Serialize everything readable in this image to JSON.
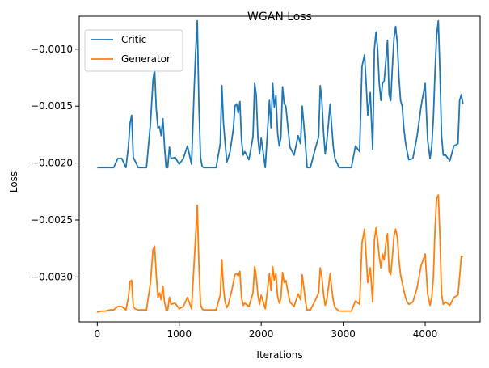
{
  "chart_data": {
    "type": "line",
    "title": "WGAN Loss",
    "xlabel": "Iterations",
    "ylabel": "Loss",
    "xlim": [
      -220,
      4670
    ],
    "ylim": [
      -0.003395,
      -0.00071
    ],
    "xticks": [
      0,
      1000,
      2000,
      3000,
      4000
    ],
    "xtick_labels": [
      "0",
      "1000",
      "2000",
      "3000",
      "4000"
    ],
    "yticks": [
      -0.001,
      -0.0015,
      -0.002,
      -0.0025,
      -0.003
    ],
    "ytick_labels": [
      "−0.0010",
      "−0.0015",
      "−0.0020",
      "−0.0025",
      "−0.0030"
    ],
    "grid": false,
    "legend_position": "upper-left",
    "series": [
      {
        "name": "Critic",
        "color": "#1f77b4",
        "x": [
          0,
          50,
          100,
          150,
          200,
          250,
          300,
          350,
          380,
          400,
          420,
          440,
          460,
          500,
          550,
          600,
          650,
          680,
          700,
          720,
          740,
          760,
          780,
          800,
          820,
          840,
          860,
          880,
          900,
          950,
          1000,
          1050,
          1100,
          1150,
          1180,
          1200,
          1220,
          1240,
          1260,
          1280,
          1300,
          1350,
          1400,
          1450,
          1500,
          1520,
          1540,
          1560,
          1580,
          1600,
          1620,
          1640,
          1660,
          1680,
          1700,
          1720,
          1740,
          1760,
          1780,
          1800,
          1850,
          1900,
          1920,
          1940,
          1960,
          1980,
          2000,
          2050,
          2100,
          2120,
          2140,
          2160,
          2180,
          2200,
          2220,
          2240,
          2260,
          2280,
          2300,
          2350,
          2400,
          2450,
          2480,
          2500,
          2520,
          2540,
          2560,
          2600,
          2650,
          2700,
          2720,
          2740,
          2760,
          2780,
          2800,
          2820,
          2840,
          2860,
          2880,
          2900,
          2950,
          3000,
          3050,
          3100,
          3150,
          3200,
          3230,
          3260,
          3280,
          3300,
          3330,
          3360,
          3380,
          3400,
          3420,
          3440,
          3460,
          3480,
          3500,
          3520,
          3540,
          3560,
          3580,
          3600,
          3620,
          3640,
          3660,
          3680,
          3700,
          3720,
          3740,
          3760,
          3780,
          3800,
          3850,
          3900,
          3950,
          4000,
          4030,
          4060,
          4080,
          4100,
          4120,
          4140,
          4160,
          4180,
          4200,
          4220,
          4250,
          4300,
          4350,
          4400,
          4420,
          4440,
          4460
        ],
        "y": [
          -0.00204,
          -0.00204,
          -0.00204,
          -0.00204,
          -0.00204,
          -0.00196,
          -0.00196,
          -0.00204,
          -0.00185,
          -0.00165,
          -0.00158,
          -0.00195,
          -0.00198,
          -0.00204,
          -0.00204,
          -0.00204,
          -0.00165,
          -0.00127,
          -0.00118,
          -0.00152,
          -0.00169,
          -0.00168,
          -0.00176,
          -0.00161,
          -0.00185,
          -0.00204,
          -0.00204,
          -0.00186,
          -0.00196,
          -0.00195,
          -0.00201,
          -0.00196,
          -0.00185,
          -0.00201,
          -0.0014,
          -0.00103,
          -0.00075,
          -0.0015,
          -0.00195,
          -0.00203,
          -0.00204,
          -0.00204,
          -0.00204,
          -0.00204,
          -0.00183,
          -0.00132,
          -0.00165,
          -0.00182,
          -0.00199,
          -0.00195,
          -0.0019,
          -0.0018,
          -0.0017,
          -0.0015,
          -0.00148,
          -0.00156,
          -0.00146,
          -0.0018,
          -0.00193,
          -0.0019,
          -0.00197,
          -0.00177,
          -0.0013,
          -0.00141,
          -0.00178,
          -0.00192,
          -0.00178,
          -0.00204,
          -0.00145,
          -0.00169,
          -0.0013,
          -0.00151,
          -0.00141,
          -0.00174,
          -0.00185,
          -0.00178,
          -0.00133,
          -0.00148,
          -0.0015,
          -0.00186,
          -0.00193,
          -0.00176,
          -0.00183,
          -0.0015,
          -0.00166,
          -0.00185,
          -0.00204,
          -0.00204,
          -0.0019,
          -0.00177,
          -0.00132,
          -0.00145,
          -0.00173,
          -0.00192,
          -0.00181,
          -0.00165,
          -0.00148,
          -0.00168,
          -0.00186,
          -0.00196,
          -0.00204,
          -0.00204,
          -0.00204,
          -0.00204,
          -0.00185,
          -0.0019,
          -0.00115,
          -0.00105,
          -0.0013,
          -0.00158,
          -0.00138,
          -0.00188,
          -0.001,
          -0.00085,
          -0.001,
          -0.0013,
          -0.00145,
          -0.0013,
          -0.00128,
          -0.0011,
          -0.00092,
          -0.0014,
          -0.00145,
          -0.00115,
          -0.0009,
          -0.0008,
          -0.00095,
          -0.00125,
          -0.00145,
          -0.0015,
          -0.0017,
          -0.00182,
          -0.0019,
          -0.00197,
          -0.00196,
          -0.00177,
          -0.0015,
          -0.0013,
          -0.0018,
          -0.00196,
          -0.00185,
          -0.0016,
          -0.0012,
          -0.00088,
          -0.00075,
          -0.0012,
          -0.00176,
          -0.00193,
          -0.00193,
          -0.00198,
          -0.00185,
          -0.00183,
          -0.00145,
          -0.0014,
          -0.00148
        ],
        "note": ""
      },
      {
        "name": "Generator",
        "color": "#ff7f0e",
        "x": [
          0,
          50,
          100,
          150,
          200,
          250,
          300,
          350,
          380,
          400,
          420,
          440,
          460,
          500,
          550,
          600,
          650,
          680,
          700,
          720,
          740,
          760,
          780,
          800,
          820,
          840,
          860,
          880,
          900,
          950,
          1000,
          1050,
          1100,
          1150,
          1180,
          1200,
          1220,
          1240,
          1260,
          1280,
          1300,
          1350,
          1400,
          1450,
          1500,
          1520,
          1540,
          1560,
          1580,
          1600,
          1620,
          1640,
          1660,
          1680,
          1700,
          1720,
          1740,
          1760,
          1780,
          1800,
          1850,
          1900,
          1920,
          1940,
          1960,
          1980,
          2000,
          2050,
          2100,
          2120,
          2140,
          2160,
          2180,
          2200,
          2220,
          2240,
          2260,
          2280,
          2300,
          2350,
          2400,
          2450,
          2480,
          2500,
          2520,
          2540,
          2560,
          2600,
          2650,
          2700,
          2720,
          2740,
          2760,
          2780,
          2800,
          2820,
          2840,
          2860,
          2880,
          2900,
          2950,
          3000,
          3050,
          3100,
          3150,
          3200,
          3230,
          3260,
          3280,
          3300,
          3330,
          3360,
          3380,
          3400,
          3420,
          3440,
          3460,
          3480,
          3500,
          3520,
          3540,
          3560,
          3580,
          3600,
          3620,
          3640,
          3660,
          3680,
          3700,
          3720,
          3740,
          3760,
          3780,
          3800,
          3850,
          3900,
          3950,
          4000,
          4030,
          4060,
          4080,
          4100,
          4120,
          4140,
          4160,
          4180,
          4200,
          4220,
          4250,
          4300,
          4350,
          4400,
          4420,
          4440,
          4460
        ],
        "y": [
          -0.00331,
          -0.0033,
          -0.0033,
          -0.00329,
          -0.00329,
          -0.00326,
          -0.00326,
          -0.00329,
          -0.00318,
          -0.00304,
          -0.00303,
          -0.00326,
          -0.00328,
          -0.00329,
          -0.00329,
          -0.00329,
          -0.00305,
          -0.00276,
          -0.00273,
          -0.00298,
          -0.00318,
          -0.00314,
          -0.0032,
          -0.00308,
          -0.00322,
          -0.00329,
          -0.00329,
          -0.00318,
          -0.00324,
          -0.00323,
          -0.00328,
          -0.00326,
          -0.00318,
          -0.00328,
          -0.0029,
          -0.00265,
          -0.00237,
          -0.0029,
          -0.00324,
          -0.00328,
          -0.00329,
          -0.00329,
          -0.00329,
          -0.00329,
          -0.00316,
          -0.00285,
          -0.0031,
          -0.00322,
          -0.00327,
          -0.00324,
          -0.00318,
          -0.00312,
          -0.00305,
          -0.00298,
          -0.00297,
          -0.00299,
          -0.00295,
          -0.00318,
          -0.00325,
          -0.00323,
          -0.00326,
          -0.00314,
          -0.00291,
          -0.003,
          -0.00316,
          -0.00324,
          -0.00316,
          -0.00328,
          -0.00297,
          -0.00312,
          -0.00291,
          -0.00303,
          -0.00297,
          -0.00317,
          -0.00323,
          -0.00319,
          -0.00296,
          -0.00305,
          -0.00303,
          -0.00322,
          -0.00326,
          -0.00315,
          -0.0032,
          -0.00298,
          -0.00309,
          -0.00322,
          -0.00329,
          -0.00329,
          -0.00322,
          -0.00314,
          -0.00292,
          -0.003,
          -0.00315,
          -0.00325,
          -0.0032,
          -0.00309,
          -0.00297,
          -0.0031,
          -0.00321,
          -0.00327,
          -0.0033,
          -0.0033,
          -0.0033,
          -0.0033,
          -0.00321,
          -0.00324,
          -0.0027,
          -0.00258,
          -0.00282,
          -0.00305,
          -0.00292,
          -0.00322,
          -0.00268,
          -0.00257,
          -0.00268,
          -0.00282,
          -0.00292,
          -0.0028,
          -0.00285,
          -0.0027,
          -0.00262,
          -0.00295,
          -0.00298,
          -0.00282,
          -0.00264,
          -0.00258,
          -0.00265,
          -0.00285,
          -0.00298,
          -0.00305,
          -0.00312,
          -0.00318,
          -0.00322,
          -0.00324,
          -0.00322,
          -0.0031,
          -0.0029,
          -0.0028,
          -0.00315,
          -0.00325,
          -0.00318,
          -0.003,
          -0.00258,
          -0.00231,
          -0.00228,
          -0.00265,
          -0.00315,
          -0.00324,
          -0.00322,
          -0.00325,
          -0.00318,
          -0.00316,
          -0.003,
          -0.00282,
          -0.00282
        ],
        "note": ""
      }
    ]
  }
}
